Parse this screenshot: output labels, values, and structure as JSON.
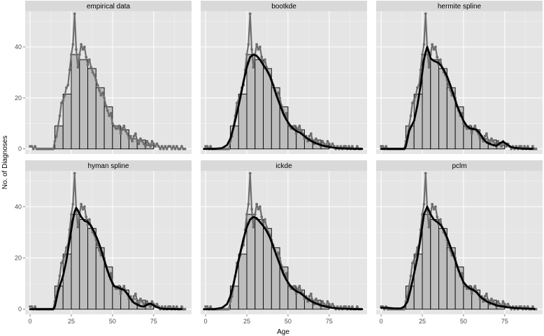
{
  "chart_data": {
    "type": "bar",
    "xlabel": "Age",
    "ylabel": "No. of Diagnoses",
    "xlim": [
      -3,
      98
    ],
    "ylim": [
      -2,
      54
    ],
    "x_ticks": [
      0,
      25,
      50,
      75
    ],
    "y_ticks": [
      0,
      20,
      40
    ],
    "grid": true,
    "layout": "2 rows x 3 columns, shared axes",
    "series": [
      {
        "kind": "histogram",
        "note": "5-year bins, bars start at age 15",
        "bins": [
          {
            "start": 15,
            "end": 20,
            "value": 9
          },
          {
            "start": 20,
            "end": 25,
            "value": 21.5
          },
          {
            "start": 25,
            "end": 30,
            "value": 37
          },
          {
            "start": 30,
            "end": 35,
            "value": 35
          },
          {
            "start": 35,
            "end": 40,
            "value": 31.5
          },
          {
            "start": 40,
            "end": 45,
            "value": 24
          },
          {
            "start": 45,
            "end": 50,
            "value": 16.5
          },
          {
            "start": 50,
            "end": 55,
            "value": 9
          },
          {
            "start": 55,
            "end": 60,
            "value": 7.5
          },
          {
            "start": 60,
            "end": 65,
            "value": 4
          },
          {
            "start": 65,
            "end": 70,
            "value": 3.5
          },
          {
            "start": 70,
            "end": 75,
            "value": 1.5
          }
        ]
      },
      {
        "kind": "empirical-points",
        "x": [
          0,
          1,
          2,
          3,
          4,
          5,
          6,
          7,
          8,
          9,
          10,
          11,
          12,
          13,
          14,
          15,
          16,
          17,
          18,
          19,
          20,
          21,
          22,
          23,
          24,
          25,
          26,
          27,
          28,
          29,
          30,
          31,
          32,
          33,
          34,
          35,
          36,
          37,
          38,
          39,
          40,
          41,
          42,
          43,
          44,
          45,
          46,
          47,
          48,
          49,
          50,
          51,
          52,
          53,
          54,
          55,
          56,
          57,
          58,
          59,
          60,
          61,
          62,
          63,
          64,
          65,
          66,
          67,
          68,
          69,
          70,
          71,
          72,
          73,
          74,
          75,
          76,
          77,
          78,
          79,
          80,
          81,
          82,
          83,
          84,
          85,
          86,
          87,
          88,
          89,
          90,
          91,
          92,
          93,
          94
        ],
        "y": [
          1,
          1,
          0,
          1,
          0,
          0,
          0,
          0,
          0,
          0,
          0,
          0,
          0,
          0,
          0,
          3,
          5,
          9,
          13,
          18,
          19,
          21,
          24,
          25,
          31,
          37,
          41,
          53,
          39,
          32,
          37,
          41,
          39,
          40,
          36,
          33,
          35,
          32,
          30,
          29,
          27,
          25,
          23,
          21,
          22,
          20,
          17,
          15,
          13,
          14,
          10,
          9,
          8,
          8,
          9,
          6,
          8,
          9,
          7,
          6,
          4,
          5,
          3,
          5,
          6,
          3,
          2,
          4,
          3,
          2,
          1,
          3,
          2,
          1,
          3,
          2,
          1,
          2,
          1,
          0,
          1,
          0,
          1,
          0,
          1,
          1,
          0,
          1,
          0,
          1,
          0,
          0,
          1,
          0,
          0
        ]
      }
    ],
    "panels": [
      {
        "title": "empirical data",
        "fit": []
      },
      {
        "title": "bootkde",
        "fit": [
          [
            -1,
            0
          ],
          [
            5,
            0
          ],
          [
            10,
            0.3
          ],
          [
            13,
            1.5
          ],
          [
            15,
            4
          ],
          [
            17,
            8.5
          ],
          [
            19,
            14
          ],
          [
            21,
            20
          ],
          [
            23,
            26.5
          ],
          [
            25,
            32
          ],
          [
            27,
            36
          ],
          [
            29,
            37
          ],
          [
            31,
            36.5
          ],
          [
            33,
            35
          ],
          [
            35,
            33
          ],
          [
            37,
            31
          ],
          [
            39,
            28.5
          ],
          [
            41,
            25
          ],
          [
            43,
            21
          ],
          [
            45,
            17.5
          ],
          [
            47,
            14
          ],
          [
            49,
            11.5
          ],
          [
            51,
            9.5
          ],
          [
            53,
            8
          ],
          [
            55,
            7
          ],
          [
            57,
            6.5
          ],
          [
            59,
            5.5
          ],
          [
            61,
            4.5
          ],
          [
            63,
            3.5
          ],
          [
            65,
            2.8
          ],
          [
            67,
            2.2
          ],
          [
            70,
            1.5
          ],
          [
            73,
            1
          ],
          [
            76,
            0.6
          ],
          [
            80,
            0.3
          ],
          [
            85,
            0.15
          ],
          [
            90,
            0.05
          ],
          [
            95,
            0
          ]
        ]
      },
      {
        "title": "hermite spline",
        "fit": [
          [
            0,
            0
          ],
          [
            5,
            0
          ],
          [
            10,
            0
          ],
          [
            14,
            0
          ],
          [
            15,
            1
          ],
          [
            16,
            4
          ],
          [
            17,
            7
          ],
          [
            18,
            8.5
          ],
          [
            20,
            11
          ],
          [
            22,
            17
          ],
          [
            24,
            25
          ],
          [
            26,
            35
          ],
          [
            27,
            38
          ],
          [
            28,
            40
          ],
          [
            29,
            38
          ],
          [
            30,
            35.5
          ],
          [
            32,
            34.5
          ],
          [
            34,
            34
          ],
          [
            36,
            33
          ],
          [
            38,
            31
          ],
          [
            40,
            28.5
          ],
          [
            42,
            25
          ],
          [
            44,
            21
          ],
          [
            46,
            17
          ],
          [
            48,
            14
          ],
          [
            50,
            11
          ],
          [
            52,
            9
          ],
          [
            54,
            8
          ],
          [
            56,
            7.8
          ],
          [
            58,
            7.5
          ],
          [
            60,
            6
          ],
          [
            62,
            4
          ],
          [
            64,
            2.5
          ],
          [
            66,
            2
          ],
          [
            68,
            1.5
          ],
          [
            70,
            1.2
          ],
          [
            72,
            2.2
          ],
          [
            74,
            2.8
          ],
          [
            76,
            2
          ],
          [
            78,
            1
          ],
          [
            80,
            0.5
          ],
          [
            85,
            0.1
          ],
          [
            92,
            0
          ]
        ]
      },
      {
        "title": "hyman spline",
        "fit": [
          [
            0,
            0
          ],
          [
            5,
            0
          ],
          [
            10,
            0
          ],
          [
            14,
            0
          ],
          [
            15,
            1
          ],
          [
            16,
            4
          ],
          [
            17,
            7
          ],
          [
            18,
            9
          ],
          [
            20,
            13
          ],
          [
            22,
            19
          ],
          [
            24,
            27
          ],
          [
            26,
            35
          ],
          [
            27,
            38
          ],
          [
            28,
            39.5
          ],
          [
            29,
            38.5
          ],
          [
            31,
            36
          ],
          [
            33,
            34.5
          ],
          [
            35,
            34
          ],
          [
            37,
            32.5
          ],
          [
            39,
            30
          ],
          [
            41,
            27
          ],
          [
            43,
            23.5
          ],
          [
            45,
            19
          ],
          [
            47,
            15
          ],
          [
            49,
            11.5
          ],
          [
            51,
            9
          ],
          [
            53,
            8.5
          ],
          [
            55,
            8
          ],
          [
            57,
            7.5
          ],
          [
            59,
            6
          ],
          [
            61,
            4
          ],
          [
            63,
            2.5
          ],
          [
            65,
            1.8
          ],
          [
            67,
            1.2
          ],
          [
            69,
            1
          ],
          [
            71,
            1.8
          ],
          [
            73,
            2.2
          ],
          [
            75,
            1.5
          ],
          [
            77,
            0.8
          ],
          [
            79,
            0.3
          ],
          [
            82,
            0.1
          ],
          [
            92,
            0
          ]
        ]
      },
      {
        "title": "ickde",
        "fit": [
          [
            -1,
            0
          ],
          [
            5,
            0
          ],
          [
            10,
            0.5
          ],
          [
            13,
            2
          ],
          [
            15,
            5
          ],
          [
            17,
            10
          ],
          [
            19,
            16
          ],
          [
            21,
            22
          ],
          [
            23,
            27.5
          ],
          [
            25,
            32
          ],
          [
            27,
            35
          ],
          [
            29,
            36
          ],
          [
            31,
            35.5
          ],
          [
            33,
            34
          ],
          [
            35,
            32.5
          ],
          [
            37,
            30.5
          ],
          [
            39,
            28
          ],
          [
            41,
            24.5
          ],
          [
            43,
            21
          ],
          [
            45,
            17.5
          ],
          [
            47,
            14
          ],
          [
            49,
            11.5
          ],
          [
            51,
            9.5
          ],
          [
            53,
            8
          ],
          [
            55,
            7
          ],
          [
            57,
            6.5
          ],
          [
            59,
            5.5
          ],
          [
            61,
            4.5
          ],
          [
            63,
            3.5
          ],
          [
            65,
            2.8
          ],
          [
            67,
            2.2
          ],
          [
            70,
            1.5
          ],
          [
            73,
            1
          ],
          [
            76,
            0.6
          ],
          [
            80,
            0.3
          ],
          [
            85,
            0.15
          ],
          [
            90,
            0.05
          ],
          [
            95,
            0
          ]
        ]
      },
      {
        "title": "pclm",
        "fit": [
          [
            0,
            0.5
          ],
          [
            4,
            0.5
          ],
          [
            8,
            0.3
          ],
          [
            12,
            0.3
          ],
          [
            14,
            1
          ],
          [
            16,
            3
          ],
          [
            18,
            8
          ],
          [
            20,
            14
          ],
          [
            22,
            20
          ],
          [
            24,
            28
          ],
          [
            26,
            37
          ],
          [
            28,
            40
          ],
          [
            30,
            37
          ],
          [
            32,
            35
          ],
          [
            34,
            34
          ],
          [
            36,
            33
          ],
          [
            38,
            31
          ],
          [
            40,
            28
          ],
          [
            42,
            24.5
          ],
          [
            44,
            21
          ],
          [
            46,
            17
          ],
          [
            48,
            13.5
          ],
          [
            50,
            10.5
          ],
          [
            52,
            9
          ],
          [
            54,
            8
          ],
          [
            56,
            7.5
          ],
          [
            58,
            6.5
          ],
          [
            60,
            5
          ],
          [
            62,
            4
          ],
          [
            64,
            3
          ],
          [
            66,
            2.5
          ],
          [
            68,
            2
          ],
          [
            70,
            1.5
          ],
          [
            72,
            1.2
          ],
          [
            74,
            1
          ],
          [
            76,
            0.8
          ],
          [
            80,
            0.5
          ],
          [
            85,
            0.3
          ],
          [
            90,
            0.2
          ],
          [
            93,
            0.1
          ]
        ]
      }
    ]
  }
}
